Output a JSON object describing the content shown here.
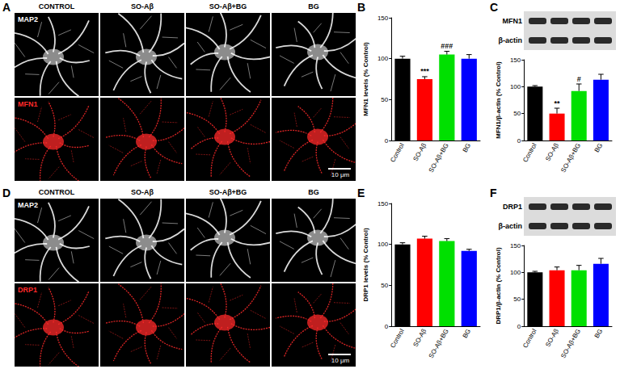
{
  "figure": {
    "image_panels": [
      {
        "letter": "A",
        "columns": [
          "CONTROL",
          "SO-Aβ",
          "SO-Aβ+BG",
          "BG"
        ],
        "rows": [
          {
            "label": "MAP2",
            "color": "#ffffff"
          },
          {
            "label": "MFN1",
            "color": "#ff2a2a"
          }
        ],
        "scale_bar": "10 μm"
      },
      {
        "letter": "D",
        "columns": [
          "CONTROL",
          "SO-Aβ",
          "SO-Aβ+BG",
          "BG"
        ],
        "rows": [
          {
            "label": "MAP2",
            "color": "#ffffff"
          },
          {
            "label": "DRP1",
            "color": "#ff2a2a"
          }
        ],
        "scale_bar": "10 μm"
      }
    ],
    "blots": [
      {
        "letter": "C",
        "bands": [
          "MFN1",
          "β-actin"
        ]
      },
      {
        "letter": "F",
        "bands": [
          "DRP1",
          "β-actin"
        ]
      }
    ]
  },
  "chart_data": [
    {
      "panel": "B",
      "type": "bar",
      "ylabel": "MFN1 levels (% Control)",
      "categories": [
        "Control",
        "SO-Aβ",
        "SO-Aβ+BG",
        "BG"
      ],
      "values": [
        100,
        75,
        105,
        100
      ],
      "errors": [
        3,
        3,
        4,
        5
      ],
      "colors": [
        "#000000",
        "#ff0000",
        "#00e000",
        "#0000ff"
      ],
      "ylim": [
        0,
        150
      ],
      "yticks": [
        0,
        50,
        100,
        150
      ],
      "grid": false,
      "annotations": [
        {
          "category": "SO-Aβ",
          "text": "***"
        },
        {
          "category": "SO-Aβ+BG",
          "text": "###"
        }
      ]
    },
    {
      "panel": "C",
      "type": "bar",
      "ylabel": "MFN1/β-actin (% Control)",
      "categories": [
        "Control",
        "SO-Aβ",
        "SO-Aβ+BG",
        "BG"
      ],
      "values": [
        100,
        50,
        92,
        113
      ],
      "errors": [
        2,
        10,
        13,
        10
      ],
      "colors": [
        "#000000",
        "#ff0000",
        "#00e000",
        "#0000ff"
      ],
      "ylim": [
        0,
        150
      ],
      "yticks": [
        0,
        50,
        100,
        150
      ],
      "grid": false,
      "annotations": [
        {
          "category": "SO-Aβ",
          "text": "**"
        },
        {
          "category": "SO-Aβ+BG",
          "text": "#"
        }
      ]
    },
    {
      "panel": "E",
      "type": "bar",
      "ylabel": "DRP1 levels (% Control)",
      "categories": [
        "Control",
        "SO-Aβ",
        "SO-Aβ+BG",
        "BG"
      ],
      "values": [
        100,
        107,
        104,
        92
      ],
      "errors": [
        2,
        3,
        3,
        2
      ],
      "colors": [
        "#000000",
        "#ff0000",
        "#00e000",
        "#0000ff"
      ],
      "ylim": [
        0,
        150
      ],
      "yticks": [
        0,
        50,
        100,
        150
      ],
      "grid": false,
      "annotations": []
    },
    {
      "panel": "F",
      "type": "bar",
      "ylabel": "DRP1/β-actin (% Control)",
      "categories": [
        "Control",
        "SO-Aβ",
        "SO-Aβ+BG",
        "BG"
      ],
      "values": [
        100,
        104,
        104,
        116
      ],
      "errors": [
        2,
        6,
        9,
        10
      ],
      "colors": [
        "#000000",
        "#ff0000",
        "#00e000",
        "#0000ff"
      ],
      "ylim": [
        0,
        150
      ],
      "yticks": [
        0,
        50,
        100,
        150
      ],
      "grid": false,
      "annotations": []
    }
  ]
}
